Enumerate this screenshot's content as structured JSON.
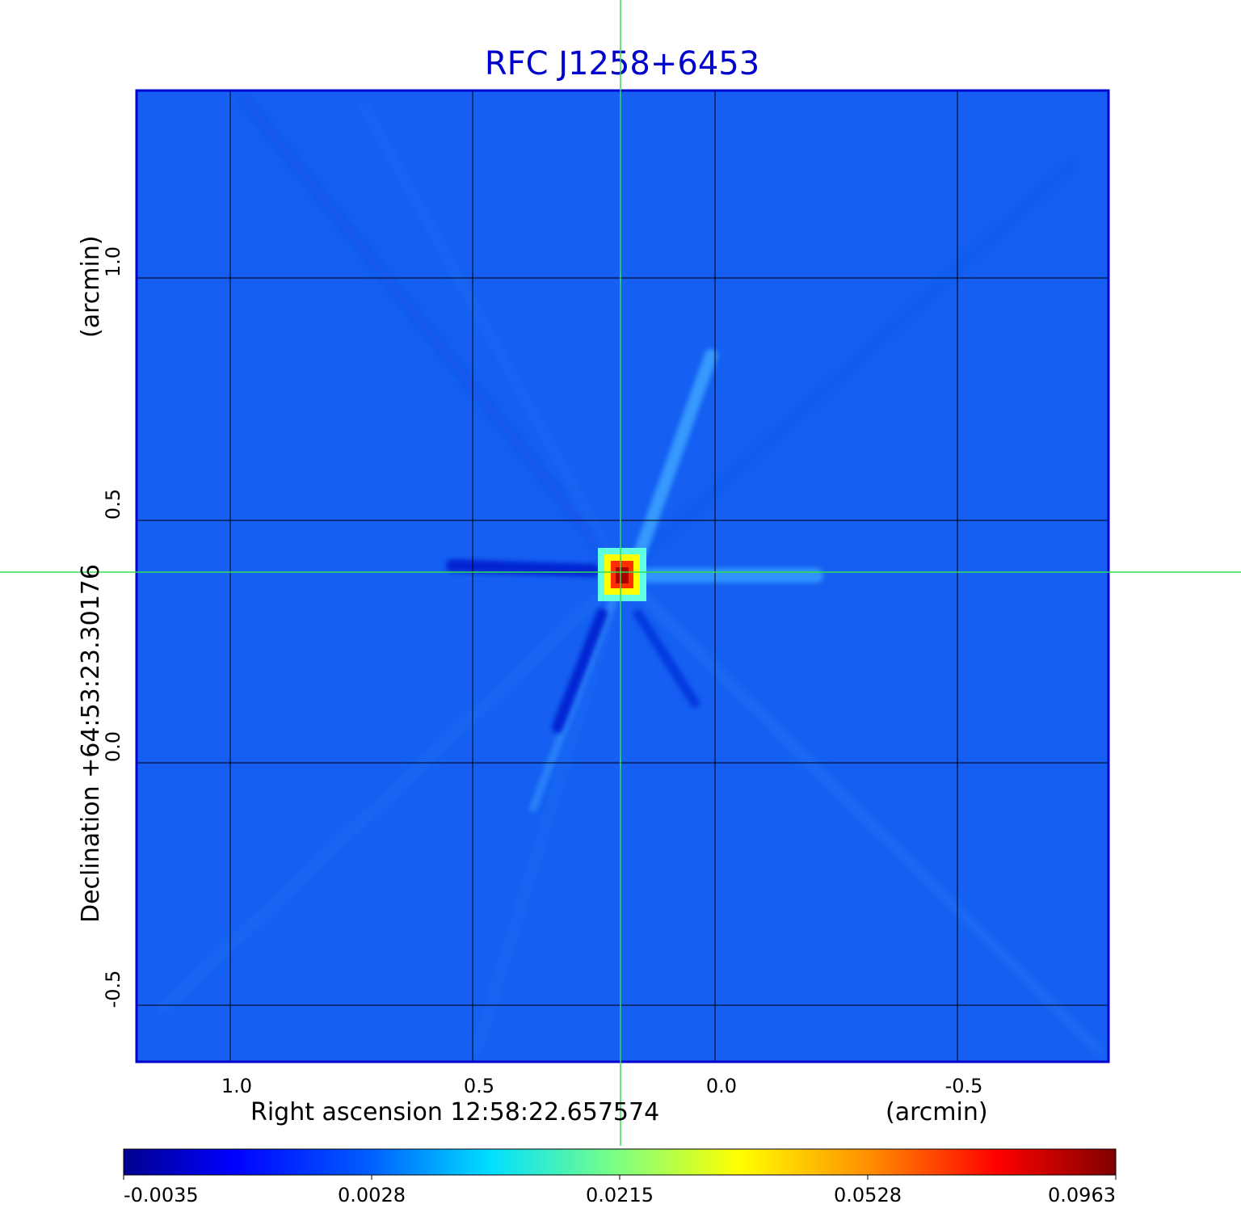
{
  "title": "RFC J1258+6453",
  "x_axis": {
    "label": "Right ascension  12:58:22.657574",
    "unit_label": "(arcmin)",
    "ticks": [
      {
        "value": 1.0,
        "label": "1.0"
      },
      {
        "value": 0.5,
        "label": "0.5"
      },
      {
        "value": 0.0,
        "label": "0.0"
      },
      {
        "value": -0.5,
        "label": "-0.5"
      }
    ]
  },
  "y_axis": {
    "label": "Declination  +64:53:23.30176",
    "unit_label": "(arcmin)",
    "ticks": [
      {
        "value": 1.0,
        "label": "1.0"
      },
      {
        "value": 0.5,
        "label": "0.5"
      },
      {
        "value": 0.0,
        "label": "0.0"
      },
      {
        "value": -0.5,
        "label": "-0.5"
      }
    ]
  },
  "colorbar": {
    "ticks": [
      "-0.0035",
      "0.0028",
      "0.0215",
      "0.0528",
      "0.0963"
    ],
    "colormap": "jet"
  },
  "colors": {
    "background_map": "#1560f2",
    "frame": "#0000cc",
    "crosshair": "#33dd55",
    "title": "#0000cc"
  }
}
